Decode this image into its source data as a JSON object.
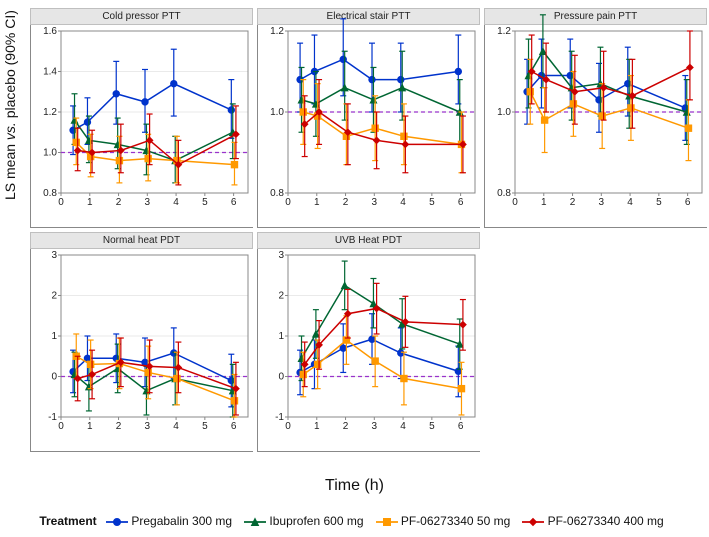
{
  "ylabel_html": "LS mean <i>vs.</i> placebo (90% CI)",
  "xlabel": "Time (h)",
  "legend_title": "Treatment",
  "time_points": [
    0.5,
    1,
    2,
    3,
    4,
    6
  ],
  "x_ticks": [
    0,
    1,
    2,
    3,
    4,
    5,
    6
  ],
  "colors": {
    "pregabalin": "#0033cc",
    "ibuprofen": "#006633",
    "pf50": "#ff9900",
    "pf400": "#cc0000",
    "ref_line": "#9933cc",
    "grid": "#eaeaea",
    "panel_header_bg": "#e6e6e6",
    "panel_header_border": "#bfbfbf",
    "axis": "#888888",
    "text": "#111111"
  },
  "markers": {
    "pregabalin": "circle",
    "ibuprofen": "triangle",
    "pf50": "square",
    "pf400": "diamond"
  },
  "series_labels": {
    "pregabalin": "Pregabalin 300 mg",
    "ibuprofen": "Ibuprofen 600 mg",
    "pf50": "PF-06273340 50 mg",
    "pf400": "PF-06273340 400 mg"
  },
  "panels": [
    {
      "title": "Cold pressor PTT",
      "ylim": [
        0.8,
        1.6
      ],
      "yticks": [
        0.8,
        1.0,
        1.2,
        1.4,
        1.6
      ],
      "ref": 1.0,
      "series": {
        "pregabalin": {
          "y": [
            1.11,
            1.15,
            1.29,
            1.25,
            1.34,
            1.21
          ],
          "lo": [
            0.99,
            1.04,
            1.14,
            1.1,
            1.18,
            1.07
          ],
          "hi": [
            1.23,
            1.27,
            1.45,
            1.41,
            1.51,
            1.36
          ]
        },
        "ibuprofen": {
          "y": [
            1.16,
            1.06,
            1.04,
            1.01,
            0.96,
            1.1
          ],
          "lo": [
            1.04,
            0.95,
            0.92,
            0.89,
            0.85,
            0.97
          ],
          "hi": [
            1.29,
            1.18,
            1.17,
            1.14,
            1.08,
            1.24
          ]
        },
        "pf50": {
          "y": [
            1.05,
            0.98,
            0.96,
            0.97,
            0.96,
            0.94
          ],
          "lo": [
            0.94,
            0.88,
            0.85,
            0.86,
            0.85,
            0.84
          ],
          "hi": [
            1.17,
            1.09,
            1.08,
            1.09,
            1.08,
            1.05
          ]
        },
        "pf400": {
          "y": [
            1.01,
            1.0,
            1.01,
            1.06,
            0.94,
            1.09
          ],
          "lo": [
            0.91,
            0.9,
            0.9,
            0.94,
            0.84,
            0.97
          ],
          "hi": [
            1.12,
            1.11,
            1.14,
            1.19,
            1.06,
            1.23
          ]
        }
      }
    },
    {
      "title": "Electrical stair PTT",
      "ylim": [
        0.8,
        1.2
      ],
      "yticks": [
        0.8,
        1.0,
        1.2
      ],
      "ref": 1.0,
      "series": {
        "pregabalin": {
          "y": [
            1.08,
            1.1,
            1.13,
            1.08,
            1.08,
            1.1
          ],
          "lo": [
            1.0,
            1.02,
            1.04,
            1.0,
            1.0,
            1.02
          ],
          "hi": [
            1.17,
            1.19,
            1.23,
            1.17,
            1.17,
            1.19
          ]
        },
        "ibuprofen": {
          "y": [
            1.03,
            1.02,
            1.06,
            1.03,
            1.06,
            1.0
          ],
          "lo": [
            0.95,
            0.94,
            0.98,
            0.95,
            0.98,
            0.92
          ],
          "hi": [
            1.11,
            1.1,
            1.15,
            1.11,
            1.15,
            1.08
          ]
        },
        "pf50": {
          "y": [
            1.0,
            0.99,
            0.94,
            0.96,
            0.94,
            0.92
          ],
          "lo": [
            0.92,
            0.91,
            0.87,
            0.88,
            0.87,
            0.85
          ],
          "hi": [
            1.08,
            1.07,
            1.02,
            1.04,
            1.02,
            1.0
          ]
        },
        "pf400": {
          "y": [
            0.97,
            1.0,
            0.95,
            0.93,
            0.92,
            0.92
          ],
          "lo": [
            0.89,
            0.92,
            0.87,
            0.86,
            0.85,
            0.85
          ],
          "hi": [
            1.04,
            1.08,
            1.02,
            1.0,
            0.99,
            0.99
          ]
        }
      }
    },
    {
      "title": "Pressure pain PTT",
      "ylim": [
        0.8,
        1.2
      ],
      "yticks": [
        0.8,
        1.0,
        1.2
      ],
      "ref": 1.0,
      "series": {
        "pregabalin": {
          "y": [
            1.05,
            1.09,
            1.09,
            1.03,
            1.07,
            1.01
          ],
          "lo": [
            0.97,
            1.01,
            1.01,
            0.95,
            0.99,
            0.93
          ],
          "hi": [
            1.13,
            1.18,
            1.18,
            1.12,
            1.16,
            1.09
          ]
        },
        "ibuprofen": {
          "y": [
            1.09,
            1.15,
            1.06,
            1.07,
            1.04,
            1.0
          ],
          "lo": [
            1.01,
            1.06,
            0.98,
            0.99,
            0.96,
            0.92
          ],
          "hi": [
            1.18,
            1.24,
            1.15,
            1.16,
            1.13,
            1.08
          ]
        },
        "pf50": {
          "y": [
            1.05,
            0.98,
            1.02,
            0.99,
            1.01,
            0.96
          ],
          "lo": [
            0.97,
            0.9,
            0.94,
            0.91,
            0.93,
            0.88
          ],
          "hi": [
            1.13,
            1.06,
            1.1,
            1.07,
            1.09,
            1.03
          ]
        },
        "pf400": {
          "y": [
            1.1,
            1.08,
            1.05,
            1.06,
            1.04,
            1.11
          ],
          "lo": [
            1.02,
            1.0,
            0.97,
            0.98,
            0.96,
            1.03
          ],
          "hi": [
            1.19,
            1.17,
            1.14,
            1.15,
            1.13,
            1.2
          ]
        }
      }
    },
    {
      "title": "Normal heat PDT",
      "ylim": [
        -1,
        3
      ],
      "yticks": [
        -1,
        0,
        1,
        2,
        3
      ],
      "ref": 0.0,
      "series": {
        "pregabalin": {
          "y": [
            0.12,
            0.45,
            0.45,
            0.35,
            0.58,
            -0.1
          ],
          "lo": [
            -0.4,
            -0.1,
            -0.15,
            -0.25,
            -0.05,
            -0.75
          ],
          "hi": [
            0.65,
            1.0,
            1.05,
            0.95,
            1.2,
            0.55
          ]
        },
        "ibuprofen": {
          "y": [
            0.05,
            -0.25,
            0.2,
            -0.35,
            -0.05,
            -0.35
          ],
          "lo": [
            -0.5,
            -0.85,
            -0.4,
            -0.95,
            -0.7,
            -1.0
          ],
          "hi": [
            0.6,
            0.35,
            0.8,
            0.25,
            0.6,
            0.3
          ]
        },
        "pf50": {
          "y": [
            0.5,
            0.3,
            0.32,
            0.1,
            -0.05,
            -0.6
          ],
          "lo": [
            -0.05,
            -0.3,
            -0.3,
            -0.55,
            -0.7,
            -1.0
          ],
          "hi": [
            1.05,
            0.9,
            0.95,
            0.75,
            0.6,
            0.05
          ]
        },
        "pf400": {
          "y": [
            -0.05,
            0.05,
            0.35,
            0.25,
            0.22,
            -0.3
          ],
          "lo": [
            -0.6,
            -0.55,
            -0.25,
            -0.4,
            -0.4,
            -0.95
          ],
          "hi": [
            0.5,
            0.65,
            0.95,
            0.9,
            0.85,
            0.35
          ]
        }
      }
    },
    {
      "title": "UVB Heat PDT",
      "ylim": [
        -1,
        3
      ],
      "yticks": [
        -1,
        0,
        1,
        2,
        3
      ],
      "ref": 0.0,
      "series": {
        "pregabalin": {
          "y": [
            0.1,
            0.3,
            0.7,
            0.92,
            0.58,
            0.13
          ],
          "lo": [
            -0.45,
            -0.3,
            0.1,
            0.3,
            -0.05,
            -0.5
          ],
          "hi": [
            0.65,
            0.9,
            1.3,
            1.55,
            1.2,
            0.75
          ]
        },
        "ibuprofen": {
          "y": [
            0.45,
            1.05,
            2.25,
            1.8,
            1.3,
            0.8
          ],
          "lo": [
            -0.1,
            0.45,
            1.65,
            1.2,
            0.68,
            0.18
          ],
          "hi": [
            1.0,
            1.65,
            2.85,
            2.42,
            1.92,
            1.42
          ]
        },
        "pf50": {
          "y": [
            0.05,
            0.3,
            0.9,
            0.38,
            -0.05,
            -0.3
          ],
          "lo": [
            -0.5,
            -0.3,
            0.3,
            -0.25,
            -0.7,
            -0.95
          ],
          "hi": [
            0.6,
            0.9,
            1.5,
            1.0,
            0.6,
            0.35
          ]
        },
        "pf400": {
          "y": [
            0.3,
            0.78,
            1.55,
            1.68,
            1.35,
            1.28
          ],
          "lo": [
            -0.25,
            0.18,
            0.95,
            1.05,
            0.72,
            0.65
          ],
          "hi": [
            0.85,
            1.38,
            2.15,
            2.3,
            1.98,
            1.9
          ]
        }
      }
    }
  ]
}
